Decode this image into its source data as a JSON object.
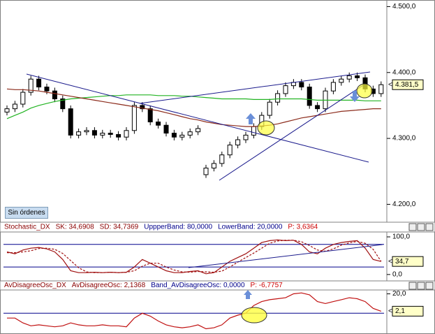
{
  "chart_data": [
    {
      "type": "candlestick",
      "open": [
        4340,
        4345,
        4352,
        4370,
        4390,
        4378,
        4372,
        4360,
        4345,
        4305,
        4310,
        4312,
        4305,
        4308,
        4306,
        4302,
        4312,
        4350,
        4345,
        4325,
        4320,
        4308,
        4302,
        4305,
        4310,
        4245,
        4255,
        4262,
        4275,
        4290,
        4298,
        4305,
        4318,
        4335,
        4355,
        4368,
        4380,
        4385,
        4378,
        4350,
        4345,
        4372,
        4385,
        4390,
        4395,
        4392,
        4375,
        4368
      ],
      "high": [
        4350,
        4357,
        4375,
        4395,
        4395,
        4383,
        4377,
        4365,
        4350,
        4315,
        4317,
        4317,
        4313,
        4313,
        4311,
        4317,
        4355,
        4355,
        4350,
        4330,
        4325,
        4313,
        4310,
        4315,
        4320,
        4260,
        4267,
        4280,
        4295,
        4303,
        4310,
        4323,
        4340,
        4360,
        4373,
        4385,
        4390,
        4390,
        4383,
        4355,
        4377,
        4390,
        4395,
        4400,
        4400,
        4397,
        4380,
        4386.5
      ],
      "low": [
        4335,
        4340,
        4347,
        4365,
        4373,
        4367,
        4355,
        4340,
        4300,
        4300,
        4305,
        4300,
        4300,
        4301,
        4297,
        4297,
        4307,
        4340,
        4320,
        4315,
        4303,
        4297,
        4297,
        4300,
        4305,
        4240,
        4250,
        4257,
        4270,
        4285,
        4293,
        4300,
        4313,
        4330,
        4350,
        4363,
        4375,
        4373,
        4345,
        4340,
        4340,
        4367,
        4380,
        4385,
        4387,
        4370,
        4363,
        4363
      ],
      "close": [
        4345,
        4352,
        4370,
        4390,
        4378,
        4372,
        4360,
        4345,
        4305,
        4310,
        4312,
        4305,
        4308,
        4306,
        4302,
        4312,
        4350,
        4345,
        4325,
        4320,
        4308,
        4302,
        4305,
        4310,
        4315,
        4255,
        4262,
        4275,
        4290,
        4298,
        4305,
        4318,
        4335,
        4355,
        4368,
        4380,
        4385,
        4378,
        4350,
        4345,
        4372,
        4385,
        4390,
        4395,
        4392,
        4375,
        4368,
        4381.5
      ],
      "series": [
        {
          "color": "#22b422",
          "values": [
            4330,
            4335,
            4340,
            4346,
            4350,
            4353,
            4356,
            4358,
            4360,
            4361,
            4362,
            4363,
            4364,
            4365,
            4365,
            4366,
            4366,
            4366,
            4366,
            4365,
            4365,
            4365,
            4364,
            4364,
            4363,
            4362,
            4361,
            4360,
            4360,
            4360,
            4360,
            4359,
            4359,
            4359,
            4360,
            4360,
            4360,
            4360,
            4359,
            4358,
            4358,
            4358,
            4358,
            4358,
            4358,
            4357,
            4357,
            4357
          ]
        },
        {
          "color": "#8b2a1a",
          "values": [
            4375,
            4374,
            4374,
            4373,
            4372,
            4370,
            4368,
            4366,
            4364,
            4362,
            4360,
            4358,
            4356,
            4354,
            4352,
            4350,
            4348,
            4346,
            4344,
            4342,
            4339,
            4336,
            4333,
            4330,
            4328,
            4325,
            4323,
            4321,
            4320,
            4319,
            4318,
            4318,
            4319,
            4320,
            4322,
            4325,
            4328,
            4331,
            4333,
            4335,
            4337,
            4339,
            4341,
            4342,
            4343,
            4344,
            4345,
            4345
          ]
        }
      ],
      "ylim": [
        4175,
        4510
      ],
      "yticks": [
        {
          "value": 4200,
          "label": "4.200,0"
        },
        {
          "value": 4300,
          "label": "4.300,0"
        },
        {
          "value": 4400,
          "label": "4.400,0"
        },
        {
          "value": 4500,
          "label": "4.500,0"
        }
      ],
      "value_tag": "4.381,5",
      "button": "Sin órdenes"
    },
    {
      "type": "line",
      "header": [
        {
          "text": "Stochastic_DX",
          "color": "#8b0000"
        },
        {
          "text": "SK: 34,6908",
          "color": "#8b0000"
        },
        {
          "text": "SD: 34,7369",
          "color": "#8b0000"
        },
        {
          "text": "UppperBand: 80,0000",
          "color": "#00008b"
        },
        {
          "text": "LowerBand: 20,0000",
          "color": "#00008b"
        },
        {
          "text": "P: 3,6364",
          "color": "#cc0000"
        }
      ],
      "series": [
        {
          "color": "#a01010",
          "values": [
            60,
            55,
            65,
            70,
            72,
            68,
            60,
            40,
            10,
            5,
            5,
            6,
            5,
            6,
            5,
            6,
            20,
            40,
            30,
            20,
            10,
            5,
            5,
            8,
            10,
            2,
            5,
            20,
            35,
            45,
            55,
            70,
            85,
            90,
            92,
            90,
            91,
            80,
            60,
            55,
            70,
            80,
            85,
            88,
            90,
            70,
            40,
            34.69
          ]
        },
        {
          "color": "#a01010",
          "dash": true,
          "values": [
            58,
            58,
            60,
            63,
            69,
            70,
            67,
            56,
            37,
            18,
            7,
            5,
            5,
            6,
            5,
            6,
            10,
            22,
            30,
            30,
            20,
            12,
            7,
            6,
            8,
            7,
            6,
            9,
            20,
            33,
            45,
            57,
            70,
            83,
            89,
            91,
            91,
            87,
            77,
            65,
            62,
            68,
            78,
            84,
            88,
            83,
            67,
            34.74
          ]
        }
      ],
      "bands": [
        80,
        20
      ],
      "band_color": "#00008b",
      "ylim": [
        -17,
        113
      ],
      "yticks": [
        {
          "value": 0,
          "label": "0,0"
        },
        {
          "value": 100,
          "label": "100,0"
        }
      ],
      "value_tag": "34,7"
    },
    {
      "type": "line",
      "header": [
        {
          "text": "AvDisagreeOsc_DX",
          "color": "#8b0000"
        },
        {
          "text": "AvDisagreeOsc: 2,1368",
          "color": "#8b0000"
        },
        {
          "text": "Band_AvDisagreeOsc: 0,0000",
          "color": "#00008b"
        },
        {
          "text": "P: -6,7757",
          "color": "#cc0000"
        }
      ],
      "series": [
        {
          "color": "#c01010",
          "values": [
            -5,
            -5,
            -10,
            -13,
            -12,
            -13,
            -14,
            -13,
            -10,
            -12,
            -13,
            -13,
            -12,
            -13,
            -13,
            -14,
            -5,
            0,
            -3,
            -8,
            -12,
            -14,
            -15,
            -14,
            -12,
            -16,
            -15,
            -12,
            -5,
            -2,
            0,
            8,
            12,
            14,
            15,
            16,
            20,
            21,
            19,
            12,
            10,
            12,
            14,
            16,
            15,
            12,
            5,
            2.1
          ]
        }
      ],
      "bands": [
        0
      ],
      "band_color": "#00008b",
      "ylim": [
        -20,
        24
      ],
      "yticks": [
        {
          "value": 20,
          "label": "20,0"
        }
      ],
      "value_tag": "2,1"
    }
  ]
}
